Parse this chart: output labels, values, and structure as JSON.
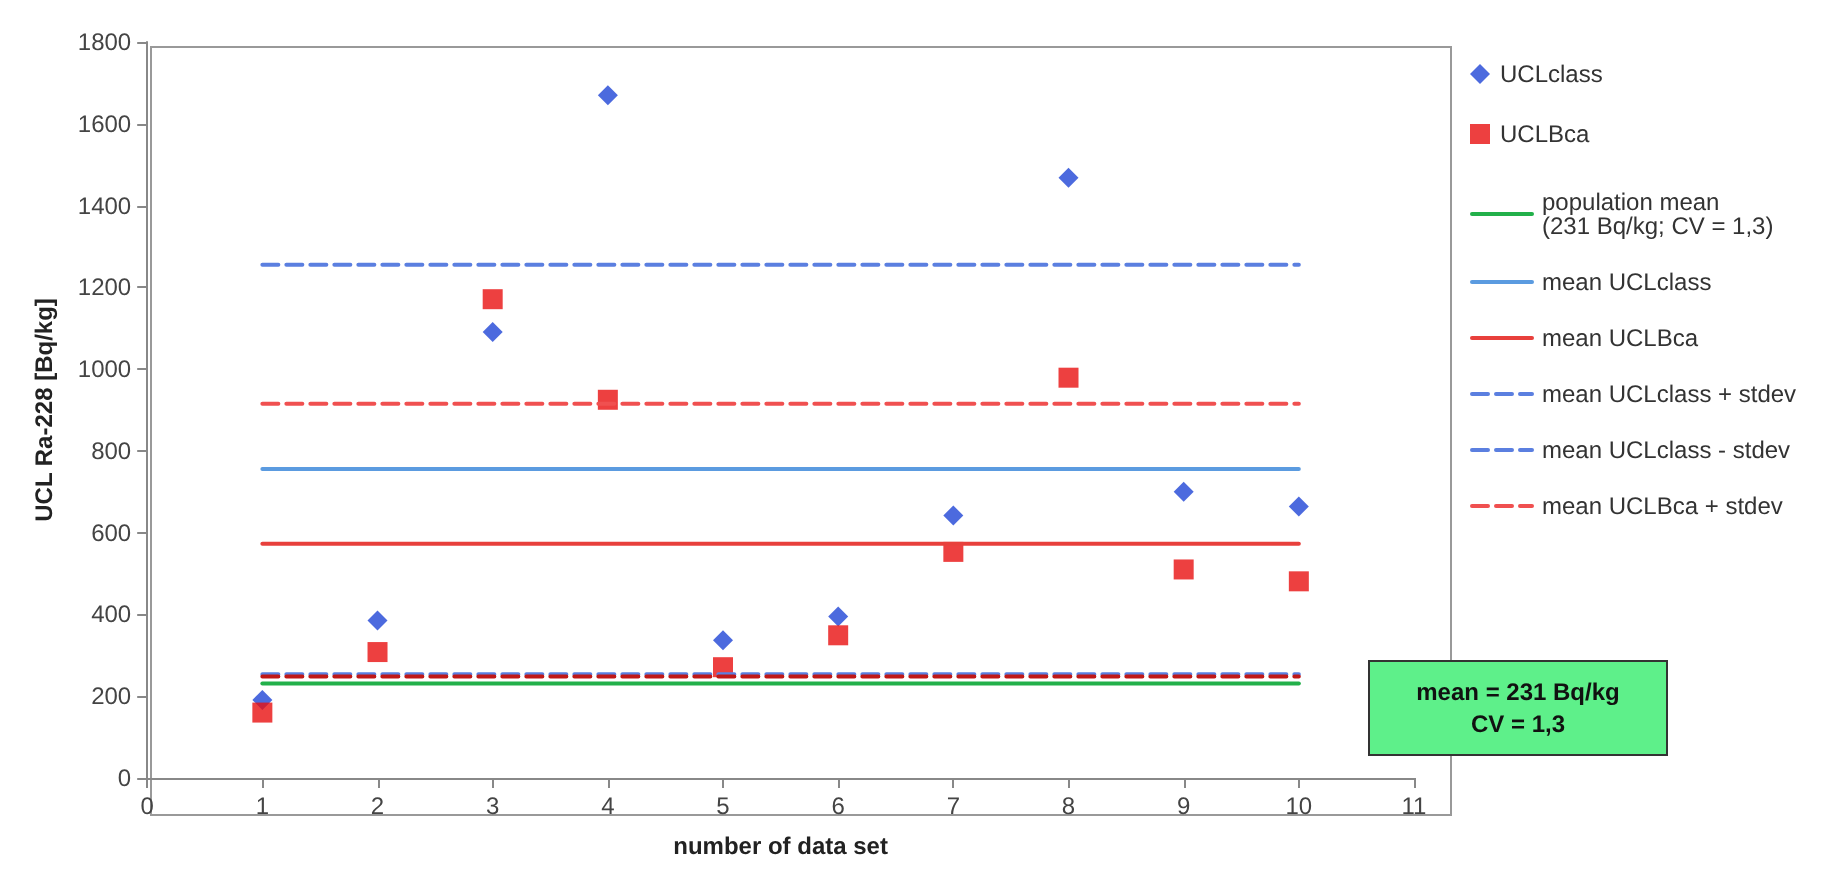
{
  "chart_data": {
    "type": "scatter",
    "xlabel": "number of data set",
    "ylabel": "UCL Ra-228 [Bq/kg]",
    "xlim": [
      0,
      11
    ],
    "xticks": [
      0,
      1,
      2,
      3,
      4,
      5,
      6,
      7,
      8,
      9,
      10,
      11
    ],
    "ylim": [
      0,
      1800
    ],
    "yticks": [
      0,
      200,
      400,
      600,
      800,
      1000,
      1200,
      1400,
      1600,
      1800
    ],
    "grid": false,
    "legend": "right",
    "series": [
      {
        "name": "UCLclass",
        "marker": "diamond",
        "color": "#1f45d6",
        "x": [
          1,
          2,
          3,
          4,
          5,
          6,
          7,
          8,
          9,
          10
        ],
        "values": [
          191,
          385,
          1091,
          1670,
          337,
          395,
          642,
          1468,
          700,
          664
        ]
      },
      {
        "name": "UCLBca",
        "marker": "square",
        "color": "#e81010",
        "x": [
          1,
          2,
          3,
          4,
          5,
          6,
          7,
          8,
          9,
          10
        ],
        "values": [
          160,
          308,
          1171,
          925,
          271,
          349,
          553,
          979,
          510,
          481
        ]
      },
      {
        "name": "population mean\n(231 Bq/kg; CV = 1,3)",
        "type": "line",
        "marker": "none",
        "line_style": "solid",
        "color": "#22b04a",
        "x": [
          1,
          10
        ],
        "values": [
          231,
          231
        ]
      },
      {
        "name": "mean UCLclass",
        "type": "line",
        "marker": "none",
        "line_style": "solid",
        "color": "#5b9be0",
        "x": [
          1,
          10
        ],
        "values": [
          756,
          756
        ]
      },
      {
        "name": "mean UCLBca",
        "type": "line",
        "marker": "none",
        "line_style": "solid",
        "color": "#e8403c",
        "x": [
          1,
          10
        ],
        "values": [
          573,
          573
        ]
      },
      {
        "name": "mean UCLclass + stdev",
        "type": "line",
        "marker": "none",
        "line_style": "dashed",
        "color": "#5b7fe0",
        "x": [
          1,
          10
        ],
        "values": [
          1255,
          1255
        ]
      },
      {
        "name": "mean UCLclass - stdev",
        "type": "line",
        "marker": "none",
        "line_style": "dashed",
        "color": "#5b7fe0",
        "x": [
          1,
          10
        ],
        "values": [
          254,
          254
        ]
      },
      {
        "name": "mean UCLBca + stdev",
        "type": "line",
        "marker": "none",
        "line_style": "dashed",
        "color": "#f05050",
        "x": [
          1,
          10
        ],
        "values": [
          915,
          915
        ]
      },
      {
        "type": "line",
        "marker": "none",
        "line_style": "dashed",
        "color": "#c01818",
        "x": [
          1,
          10
        ],
        "values": [
          248,
          248
        ]
      }
    ],
    "annotations": [
      "mean = 231 Bq/kg\nCV =  1,3"
    ]
  }
}
